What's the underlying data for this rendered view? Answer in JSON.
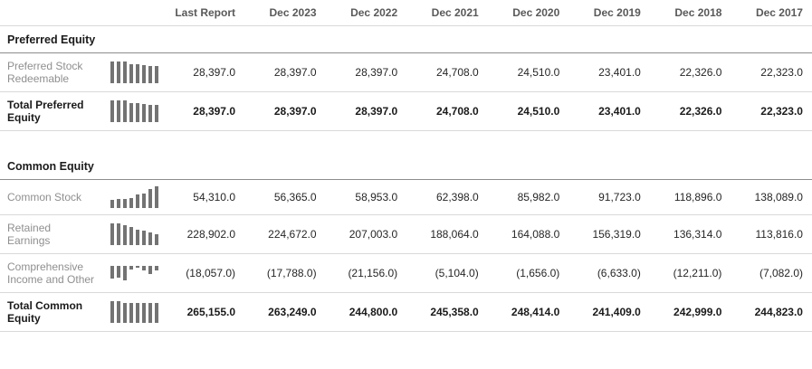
{
  "header": {
    "columns": [
      "Last Report",
      "Dec 2023",
      "Dec 2022",
      "Dec 2021",
      "Dec 2020",
      "Dec 2019",
      "Dec 2018",
      "Dec 2017"
    ]
  },
  "sections": [
    {
      "title": "Preferred Equity",
      "rows": [
        {
          "label": "Preferred Stock Redeemable",
          "total": false,
          "values": [
            "28,397.0",
            "28,397.0",
            "28,397.0",
            "24,708.0",
            "24,510.0",
            "23,401.0",
            "22,326.0",
            "22,323.0"
          ],
          "sparkline": [
            28397,
            28397,
            28397,
            24708,
            24510,
            23401,
            22326,
            22323
          ]
        },
        {
          "label": "Total Preferred Equity",
          "total": true,
          "values": [
            "28,397.0",
            "28,397.0",
            "28,397.0",
            "24,708.0",
            "24,510.0",
            "23,401.0",
            "22,326.0",
            "22,323.0"
          ],
          "sparkline": [
            28397,
            28397,
            28397,
            24708,
            24510,
            23401,
            22326,
            22323
          ]
        }
      ]
    },
    {
      "title": "Common Equity",
      "rows": [
        {
          "label": "Common Stock",
          "total": false,
          "values": [
            "54,310.0",
            "56,365.0",
            "58,953.0",
            "62,398.0",
            "85,982.0",
            "91,723.0",
            "118,896.0",
            "138,089.0"
          ],
          "sparkline": [
            54310,
            56365,
            58953,
            62398,
            85982,
            91723,
            118896,
            138089
          ]
        },
        {
          "label": "Retained Earnings",
          "total": false,
          "values": [
            "228,902.0",
            "224,672.0",
            "207,003.0",
            "188,064.0",
            "164,088.0",
            "156,319.0",
            "136,314.0",
            "113,816.0"
          ],
          "sparkline": [
            228902,
            224672,
            207003,
            188064,
            164088,
            156319,
            136314,
            113816
          ]
        },
        {
          "label": "Comprehensive Income and Other",
          "total": false,
          "values": [
            "(18,057.0)",
            "(17,788.0)",
            "(21,156.0)",
            "(5,104.0)",
            "(1,656.0)",
            "(6,633.0)",
            "(12,211.0)",
            "(7,082.0)"
          ],
          "sparkline": [
            -18057,
            -17788,
            -21156,
            -5104,
            -1656,
            -6633,
            -12211,
            -7082
          ]
        },
        {
          "label": "Total Common Equity",
          "total": true,
          "values": [
            "265,155.0",
            "263,249.0",
            "244,800.0",
            "245,358.0",
            "248,414.0",
            "241,409.0",
            "242,999.0",
            "244,823.0"
          ],
          "sparkline": [
            265155,
            263249,
            244800,
            245358,
            248414,
            241409,
            242999,
            244823
          ]
        }
      ]
    }
  ],
  "colors": {
    "row_label": "#8f8f8f",
    "value_text": "#262626",
    "total_text": "#1a1a1a",
    "header_text": "#595959",
    "sparkline_bar": "#737373",
    "divider_light": "#d9d9d9",
    "divider_dark": "#8c8c8c"
  }
}
